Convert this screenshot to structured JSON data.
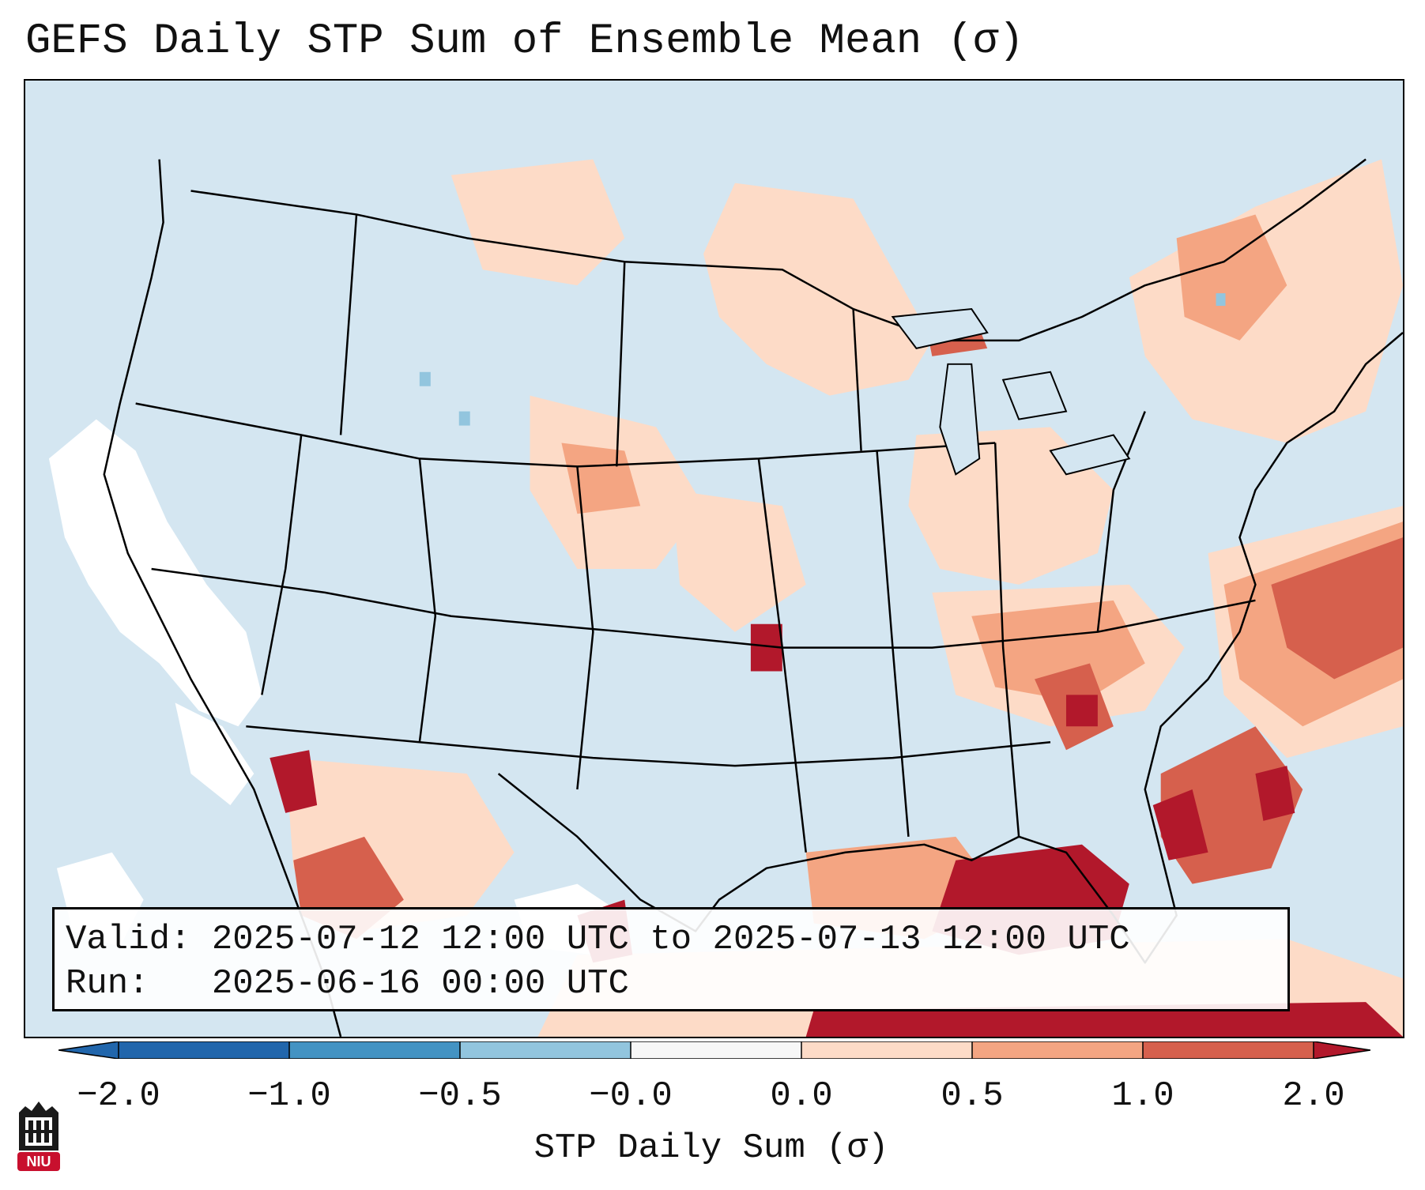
{
  "title": "GEFS Daily STP Sum of Ensemble Mean (σ)",
  "valid": {
    "label": "Valid:",
    "value": "2025-07-12 12:00 UTC to 2025-07-13 12:00 UTC"
  },
  "run": {
    "label": "Run:",
    "value": "2025-06-16 00:00 UTC"
  },
  "colorbar": {
    "title": "STP Daily Sum (σ)",
    "ticks": [
      "−2.0",
      "−1.0",
      "−0.5",
      "−0.0",
      "0.0",
      "0.5",
      "1.0",
      "2.0"
    ],
    "colors": [
      "#2166ac",
      "#4393c3",
      "#92c5de",
      "#d1e5f0",
      "#f7f7f7",
      "#fddbc7",
      "#f4a582",
      "#d6604d",
      "#b2182b"
    ]
  },
  "map": {
    "ocean_color": "#d4e6f1",
    "anomaly_colors": {
      "light_salmon": "#fddbc7",
      "salmon": "#f4a582",
      "red": "#d6604d",
      "dark_red": "#b2182b",
      "white": "#ffffff",
      "light_blue": "#92c5de"
    }
  },
  "logo": {
    "text": "NIU",
    "color": "#c8102e"
  }
}
